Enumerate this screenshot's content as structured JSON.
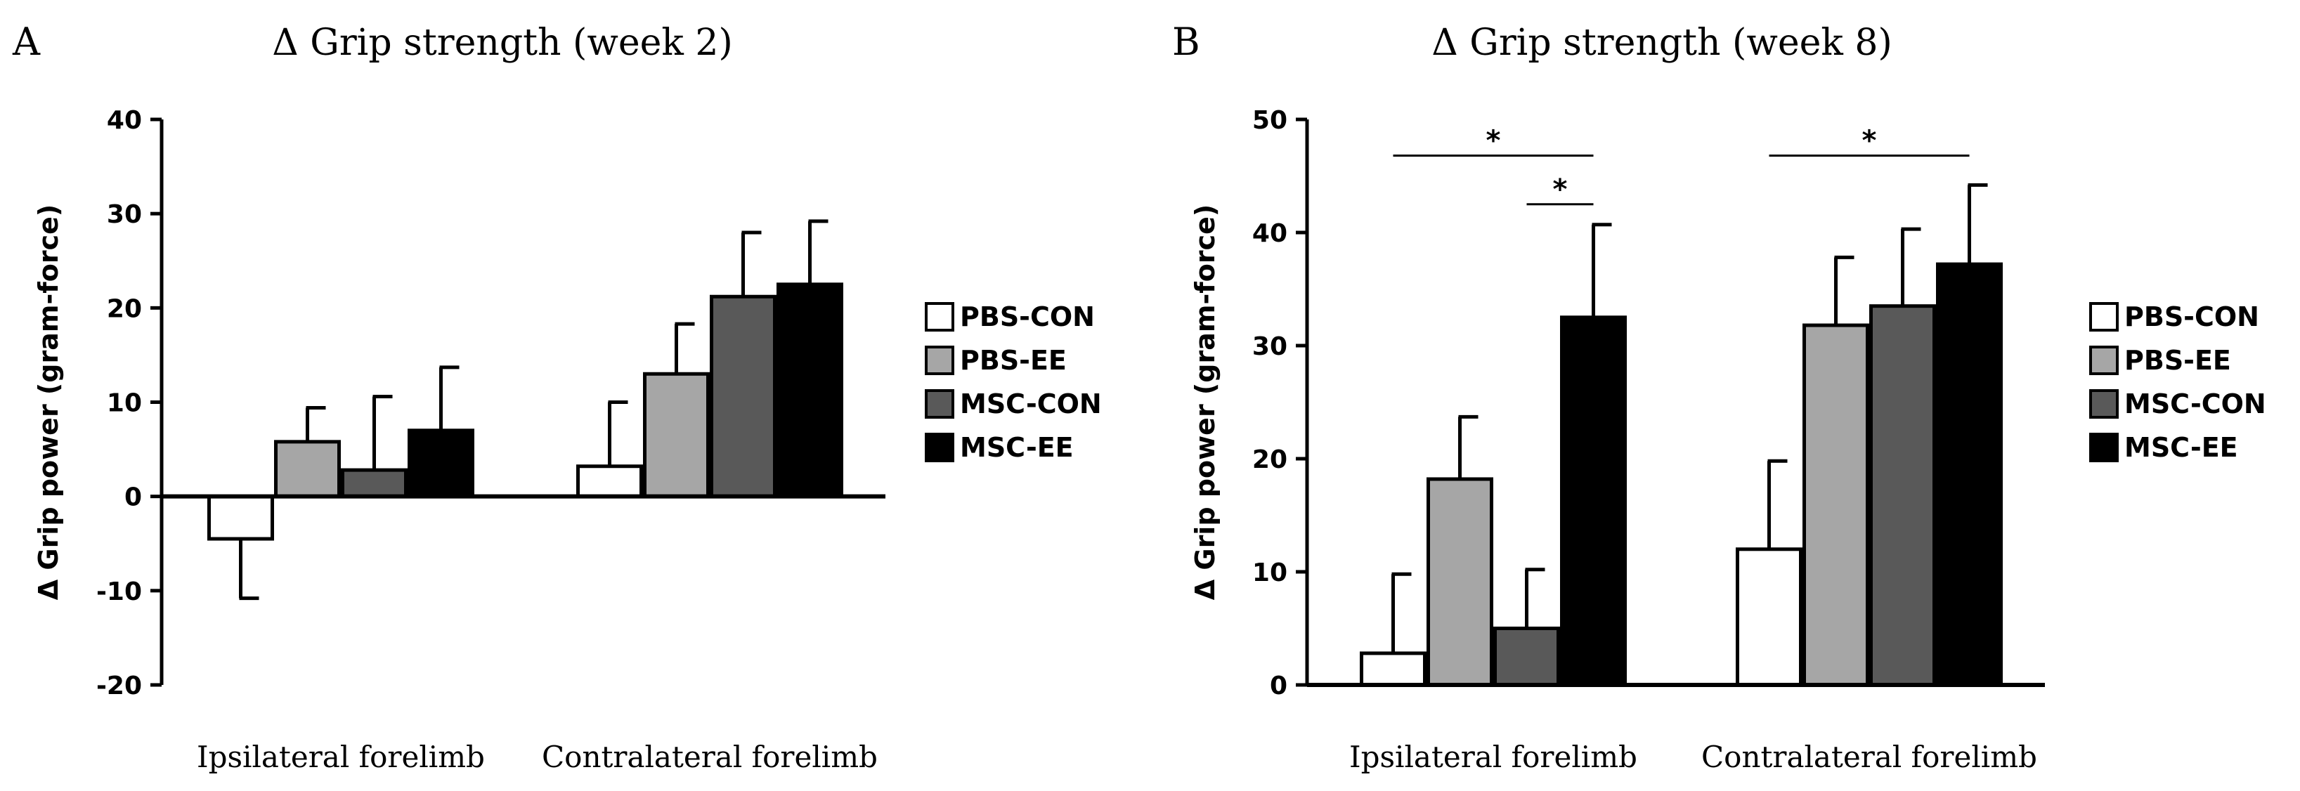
{
  "chart_data": [
    {
      "type": "bar",
      "panel": "A",
      "title": "Δ Grip strength (week 2)",
      "ylabel": "Δ Grip power (gram-force)",
      "xlabel": "",
      "ylim": [
        -20,
        40
      ],
      "yticks": [
        -20,
        -10,
        0,
        10,
        20,
        30,
        40
      ],
      "categories": [
        "Ipsilateral forelimb",
        "Contralateral forelimb"
      ],
      "series": [
        {
          "name": "PBS-CON",
          "color": "#ffffff",
          "values": [
            -4.5,
            3.2
          ],
          "errors": [
            6.3,
            6.8
          ]
        },
        {
          "name": "PBS-EE",
          "color": "#a6a6a6",
          "values": [
            5.8,
            13.0
          ],
          "errors": [
            3.6,
            5.3
          ]
        },
        {
          "name": "MSC-CON",
          "color": "#595959",
          "values": [
            2.8,
            21.2
          ],
          "errors": [
            7.8,
            6.8
          ]
        },
        {
          "name": "MSC-EE",
          "color": "#000000",
          "values": [
            7.0,
            22.5
          ],
          "errors": [
            6.7,
            6.7
          ]
        }
      ],
      "legend": "right",
      "significance": []
    },
    {
      "type": "bar",
      "panel": "B",
      "title": "Δ Grip strength (week 8)",
      "ylabel": "Δ Grip power (gram-force)",
      "xlabel": "",
      "ylim": [
        0,
        50
      ],
      "yticks": [
        0,
        10,
        20,
        30,
        40,
        50
      ],
      "categories": [
        "Ipsilateral forelimb",
        "Contralateral forelimb"
      ],
      "series": [
        {
          "name": "PBS-CON",
          "color": "#ffffff",
          "values": [
            2.8,
            12.0
          ],
          "errors": [
            7.0,
            7.8
          ]
        },
        {
          "name": "PBS-EE",
          "color": "#a6a6a6",
          "values": [
            18.2,
            31.8
          ],
          "errors": [
            5.5,
            6.0
          ]
        },
        {
          "name": "MSC-CON",
          "color": "#595959",
          "values": [
            5.0,
            33.5
          ],
          "errors": [
            5.2,
            6.8
          ]
        },
        {
          "name": "MSC-EE",
          "color": "#000000",
          "values": [
            32.5,
            37.2
          ],
          "errors": [
            8.2,
            7.0
          ]
        }
      ],
      "legend": "right",
      "significance": [
        {
          "category": 0,
          "from": 0,
          "to": 3,
          "level": 46.8,
          "label": "*"
        },
        {
          "category": 0,
          "from": 2,
          "to": 3,
          "level": 42.5,
          "label": "*"
        },
        {
          "category": 1,
          "from": 0,
          "to": 3,
          "level": 46.8,
          "label": "*"
        }
      ]
    }
  ]
}
